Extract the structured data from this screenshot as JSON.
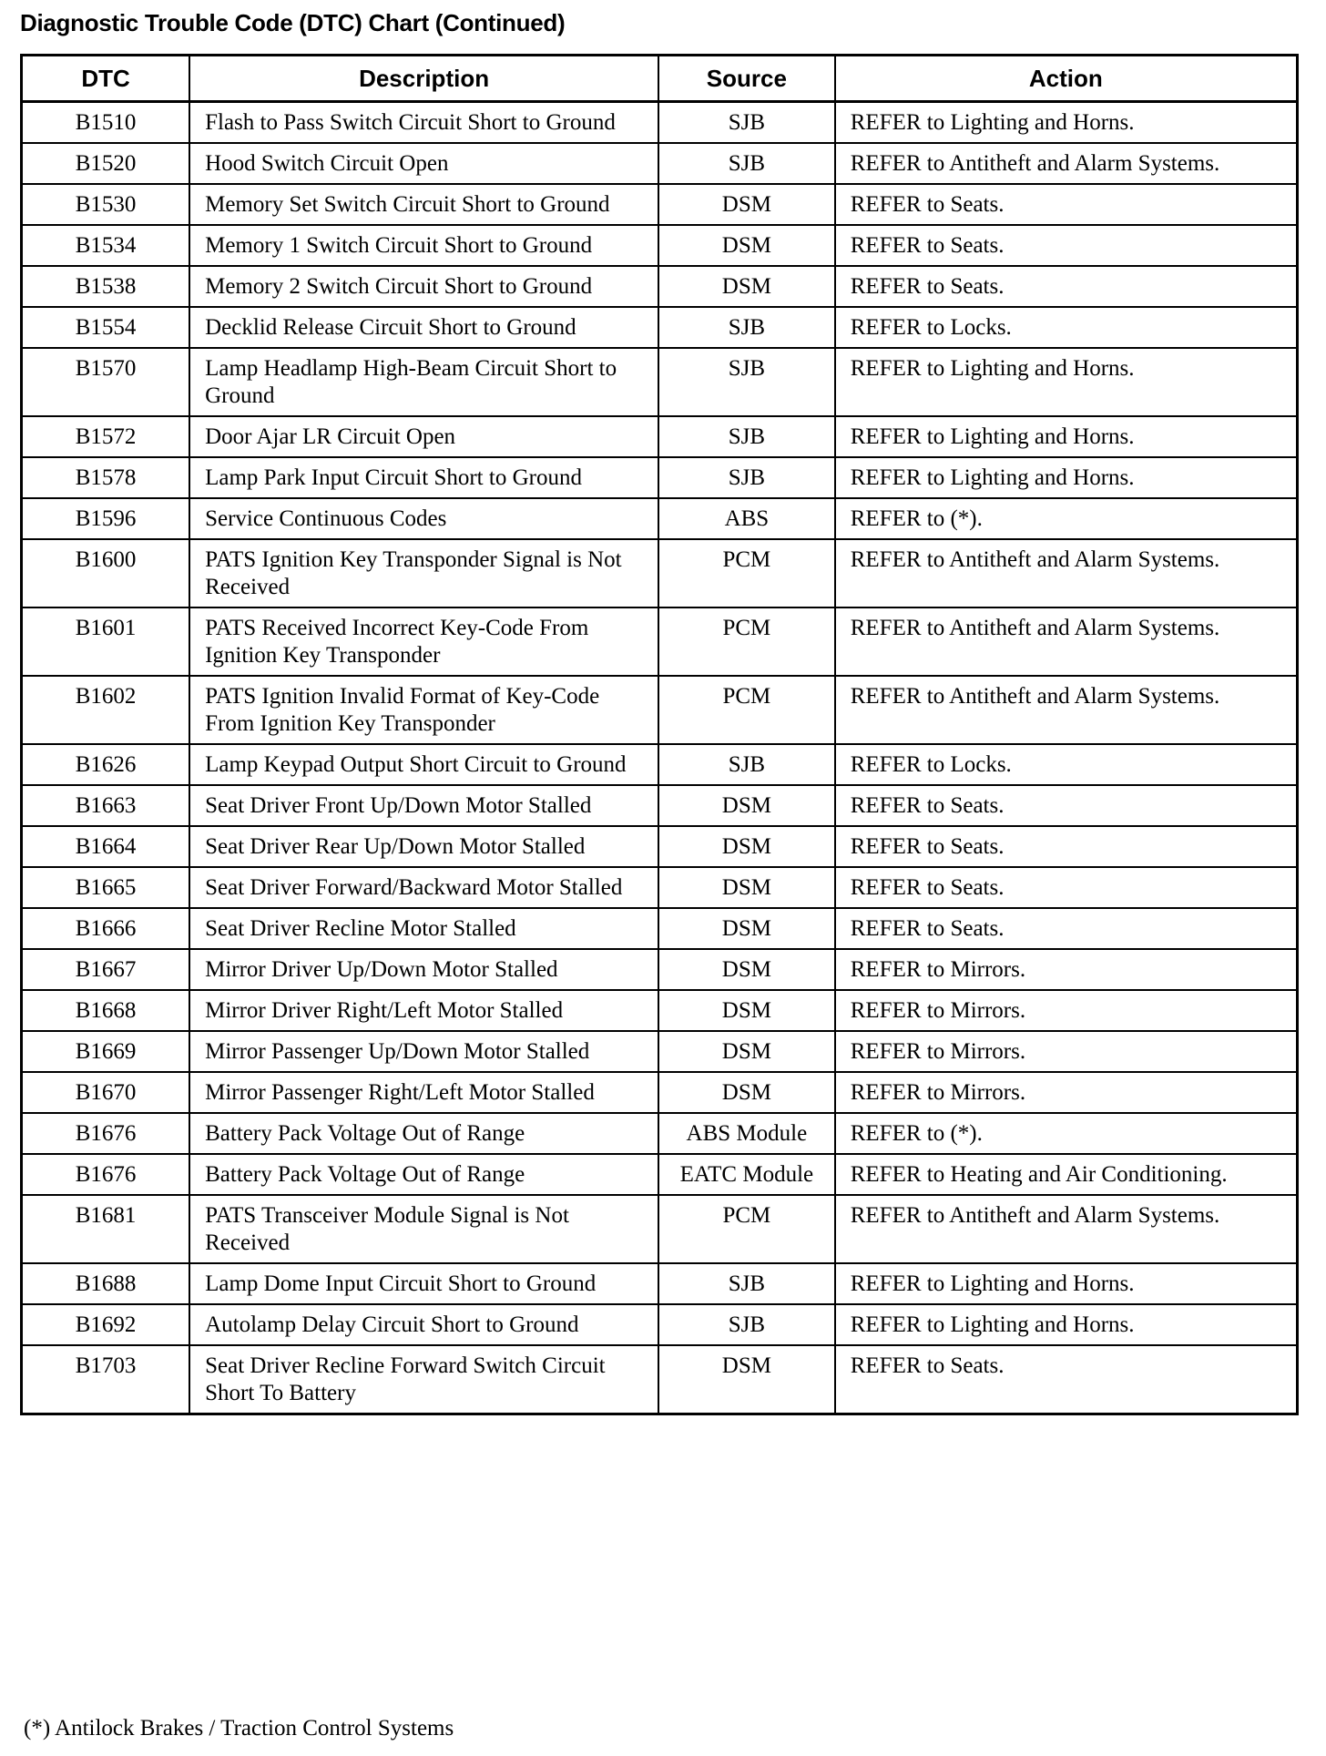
{
  "title": "Diagnostic Trouble Code (DTC) Chart (Continued)",
  "headers": [
    "DTC",
    "Description",
    "Source",
    "Action"
  ],
  "rows": [
    [
      "B1510",
      "Flash to Pass Switch Circuit Short to Ground",
      "SJB",
      "REFER to Lighting and Horns."
    ],
    [
      "B1520",
      "Hood Switch Circuit Open",
      "SJB",
      "REFER to Antitheft and Alarm Systems."
    ],
    [
      "B1530",
      "Memory Set Switch Circuit Short to Ground",
      "DSM",
      "REFER to Seats."
    ],
    [
      "B1534",
      "Memory 1 Switch Circuit Short to Ground",
      "DSM",
      "REFER to Seats."
    ],
    [
      "B1538",
      "Memory 2 Switch Circuit Short to Ground",
      "DSM",
      "REFER to Seats."
    ],
    [
      "B1554",
      "Decklid Release Circuit Short to Ground",
      "SJB",
      "REFER to Locks."
    ],
    [
      "B1570",
      "Lamp Headlamp High-Beam Circuit Short to Ground",
      "SJB",
      "REFER to Lighting and Horns."
    ],
    [
      "B1572",
      "Door Ajar LR Circuit Open",
      "SJB",
      "REFER to Lighting and Horns."
    ],
    [
      "B1578",
      "Lamp Park Input Circuit Short to Ground",
      "SJB",
      "REFER to Lighting and Horns."
    ],
    [
      "B1596",
      "Service Continuous Codes",
      "ABS",
      "REFER to (*)."
    ],
    [
      "B1600",
      "PATS Ignition Key Transponder Signal is Not Received",
      "PCM",
      "REFER to Antitheft and Alarm Systems."
    ],
    [
      "B1601",
      "PATS Received Incorrect Key-Code From Ignition Key Transponder",
      "PCM",
      "REFER to Antitheft and Alarm Systems."
    ],
    [
      "B1602",
      "PATS Ignition Invalid Format of Key-Code From Ignition Key Transponder",
      "PCM",
      "REFER to Antitheft and Alarm Systems."
    ],
    [
      "B1626",
      "Lamp Keypad Output Short Circuit to Ground",
      "SJB",
      "REFER to Locks."
    ],
    [
      "B1663",
      "Seat Driver Front Up/Down Motor Stalled",
      "DSM",
      "REFER to Seats."
    ],
    [
      "B1664",
      "Seat Driver Rear Up/Down Motor Stalled",
      "DSM",
      "REFER to Seats."
    ],
    [
      "B1665",
      "Seat Driver Forward/Backward Motor Stalled",
      "DSM",
      "REFER to Seats."
    ],
    [
      "B1666",
      "Seat Driver Recline Motor Stalled",
      "DSM",
      "REFER to Seats."
    ],
    [
      "B1667",
      "Mirror Driver Up/Down Motor Stalled",
      "DSM",
      "REFER to Mirrors."
    ],
    [
      "B1668",
      "Mirror Driver Right/Left Motor Stalled",
      "DSM",
      "REFER to Mirrors."
    ],
    [
      "B1669",
      "Mirror Passenger Up/Down Motor Stalled",
      "DSM",
      "REFER to Mirrors."
    ],
    [
      "B1670",
      "Mirror Passenger Right/Left Motor Stalled",
      "DSM",
      "REFER to Mirrors."
    ],
    [
      "B1676",
      "Battery Pack Voltage Out of Range",
      "ABS Module",
      "REFER to (*)."
    ],
    [
      "B1676",
      "Battery Pack Voltage Out of Range",
      "EATC Module",
      "REFER to Heating and Air Conditioning."
    ],
    [
      "B1681",
      "PATS Transceiver Module Signal is Not Received",
      "PCM",
      "REFER to Antitheft and Alarm Systems."
    ],
    [
      "B1688",
      "Lamp Dome Input Circuit Short to Ground",
      "SJB",
      "REFER to Lighting and Horns."
    ],
    [
      "B1692",
      "Autolamp Delay Circuit Short to Ground",
      "SJB",
      "REFER to Lighting and Horns."
    ],
    [
      "B1703",
      "Seat Driver Recline Forward Switch Circuit Short To Battery",
      "DSM",
      "REFER to Seats."
    ]
  ],
  "footnote": "(*) Antilock Brakes / Traction Control Systems"
}
